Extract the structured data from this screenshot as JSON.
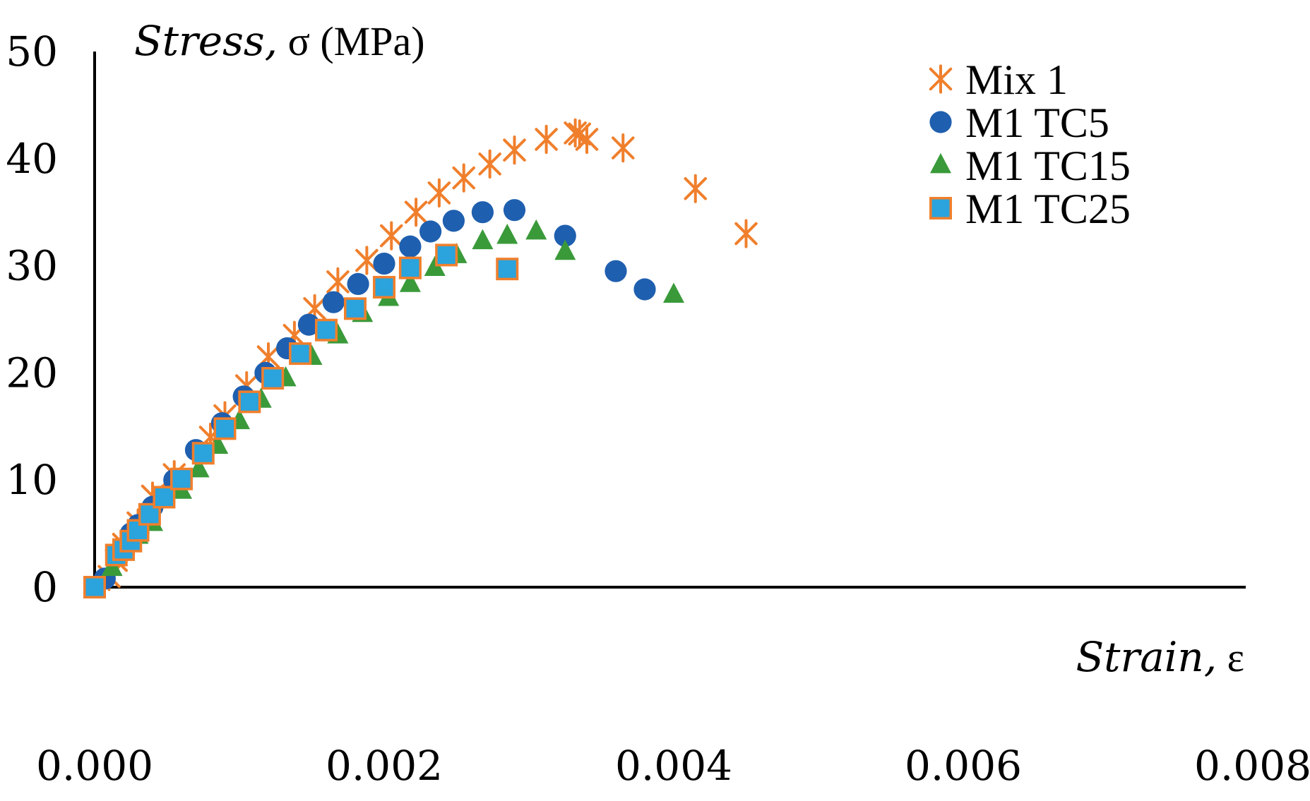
{
  "chart_data": {
    "type": "scatter",
    "title": "",
    "xlabel": "Strain, ε",
    "xlabel_italic": "Strain,",
    "xlabel_symbol": "ε",
    "ylabel": "Stress, σ (MPa)",
    "ylabel_italic": "Stress,",
    "ylabel_symbol": "σ",
    "ylabel_unit": "(MPa)",
    "xlim": [
      0,
      0.008
    ],
    "ylim": [
      0,
      50
    ],
    "xticks": [
      0,
      0.002,
      0.004,
      0.006,
      0.008
    ],
    "xtick_labels": [
      "0.000",
      "0.002",
      "0.004",
      "0.006",
      "0.008"
    ],
    "yticks": [
      0,
      10,
      20,
      30,
      40,
      50
    ],
    "ytick_labels": [
      "0",
      "10",
      "20",
      "30",
      "40",
      "50"
    ],
    "grid": false,
    "legend_position": "top-right",
    "series": [
      {
        "name": "Mix 1",
        "marker": "asterisk",
        "color": "#F07F2C",
        "points": [
          [
            0.0001,
            1.0
          ],
          [
            0.00015,
            2.5
          ],
          [
            0.0002,
            4.0
          ],
          [
            0.0003,
            6.0
          ],
          [
            0.0004,
            8.5
          ],
          [
            0.00055,
            10.5
          ],
          [
            0.0008,
            14.0
          ],
          [
            0.0009,
            16.0
          ],
          [
            0.00105,
            18.8
          ],
          [
            0.0012,
            21.5
          ],
          [
            0.00138,
            23.5
          ],
          [
            0.00152,
            26.0
          ],
          [
            0.00168,
            28.5
          ],
          [
            0.00188,
            30.5
          ],
          [
            0.00205,
            32.8
          ],
          [
            0.00222,
            35.0
          ],
          [
            0.00238,
            36.8
          ],
          [
            0.00255,
            38.2
          ],
          [
            0.00273,
            39.5
          ],
          [
            0.0029,
            40.8
          ],
          [
            0.00312,
            41.8
          ],
          [
            0.00332,
            42.4
          ],
          [
            0.00335,
            42.3
          ],
          [
            0.0034,
            41.8
          ],
          [
            0.00365,
            41.0
          ],
          [
            0.00415,
            37.2
          ],
          [
            0.0045,
            33.0
          ]
        ]
      },
      {
        "name": "M1 TC5",
        "marker": "circle",
        "color": "#1F5FAF",
        "points": [
          [
            7e-05,
            0.8
          ],
          [
            0.00015,
            3.0
          ],
          [
            0.00025,
            5.0
          ],
          [
            0.0003,
            5.8
          ],
          [
            0.0004,
            7.5
          ],
          [
            0.00055,
            10.0
          ],
          [
            0.0007,
            12.8
          ],
          [
            0.00088,
            15.3
          ],
          [
            0.00103,
            17.8
          ],
          [
            0.00118,
            20.0
          ],
          [
            0.00133,
            22.3
          ],
          [
            0.00148,
            24.5
          ],
          [
            0.00165,
            26.6
          ],
          [
            0.00182,
            28.3
          ],
          [
            0.002,
            30.2
          ],
          [
            0.00218,
            31.8
          ],
          [
            0.00232,
            33.2
          ],
          [
            0.00248,
            34.2
          ],
          [
            0.00268,
            35.0
          ],
          [
            0.0029,
            35.2
          ],
          [
            0.00325,
            32.8
          ],
          [
            0.0036,
            29.5
          ],
          [
            0.0038,
            27.8
          ]
        ]
      },
      {
        "name": "M1 TC15",
        "marker": "triangle",
        "color": "#3A9A3A",
        "points": [
          [
            0.00012,
            1.8
          ],
          [
            0.0002,
            3.5
          ],
          [
            0.0003,
            4.8
          ],
          [
            0.0004,
            6.0
          ],
          [
            0.0006,
            9.0
          ],
          [
            0.00072,
            11.0
          ],
          [
            0.00085,
            13.2
          ],
          [
            0.001,
            15.5
          ],
          [
            0.00115,
            17.5
          ],
          [
            0.00132,
            19.5
          ],
          [
            0.0015,
            21.5
          ],
          [
            0.00168,
            23.5
          ],
          [
            0.00185,
            25.5
          ],
          [
            0.00203,
            27.0
          ],
          [
            0.00218,
            28.3
          ],
          [
            0.00235,
            29.8
          ],
          [
            0.0025,
            31.0
          ],
          [
            0.00268,
            32.3
          ],
          [
            0.00285,
            32.8
          ],
          [
            0.00305,
            33.2
          ],
          [
            0.00325,
            31.3
          ],
          [
            0.004,
            27.3
          ]
        ]
      },
      {
        "name": "M1 TC25",
        "marker": "square",
        "color": "#2BA3DC",
        "edge_color": "#F07F2C",
        "points": [
          [
            0.0,
            0.0
          ],
          [
            0.00015,
            3.0
          ],
          [
            0.0002,
            3.5
          ],
          [
            0.00025,
            4.3
          ],
          [
            0.0003,
            5.3
          ],
          [
            0.00038,
            6.8
          ],
          [
            0.00048,
            8.4
          ],
          [
            0.0006,
            10.1
          ],
          [
            0.00075,
            12.5
          ],
          [
            0.0009,
            14.8
          ],
          [
            0.00107,
            17.3
          ],
          [
            0.00123,
            19.5
          ],
          [
            0.00142,
            21.8
          ],
          [
            0.0016,
            24.0
          ],
          [
            0.0018,
            26.0
          ],
          [
            0.002,
            28.0
          ],
          [
            0.00218,
            29.8
          ],
          [
            0.00243,
            31.0
          ],
          [
            0.00285,
            29.7
          ]
        ]
      }
    ]
  }
}
